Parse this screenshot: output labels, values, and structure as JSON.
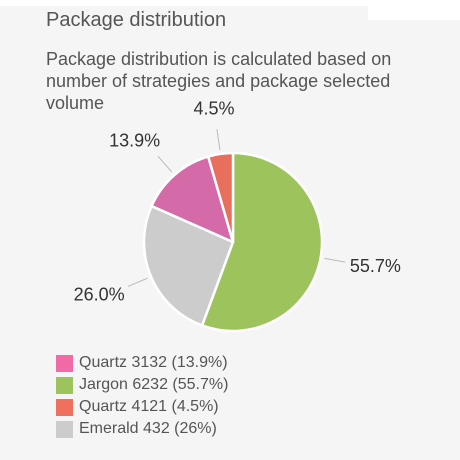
{
  "header": {
    "title": "Package distribution",
    "subtitle": "Package distribution is calculated based on number of strategies and package selected volume"
  },
  "chart_data": {
    "type": "pie",
    "start_angle_deg": 0,
    "direction": "clockwise",
    "slices": [
      {
        "label": "Jargon",
        "value": 6232,
        "percent_label": "55.7%",
        "color": "#9cc35c"
      },
      {
        "label": "Emerald",
        "value": 432,
        "percent_label": "26.0%",
        "color": "#cccccc"
      },
      {
        "label": "Quartz",
        "value": 3132,
        "percent_label": "13.9%",
        "color": "#d46aa8"
      },
      {
        "label": "Quartz",
        "value": 4121,
        "percent_label": "4.5%",
        "color": "#e86f5c"
      }
    ],
    "slice_percent": [
      55.7,
      26.0,
      13.9,
      4.5
    ],
    "legend": [
      {
        "text": "Quartz 3132 (13.9%)",
        "color": "#f06aa6"
      },
      {
        "text": "Jargon 6232 (55.7%)",
        "color": "#9cc35c"
      },
      {
        "text": "Quartz 4121 (4.5%)",
        "color": "#f0705e"
      },
      {
        "text": "Emerald 432 (26%)",
        "color": "#cccccc"
      }
    ]
  }
}
